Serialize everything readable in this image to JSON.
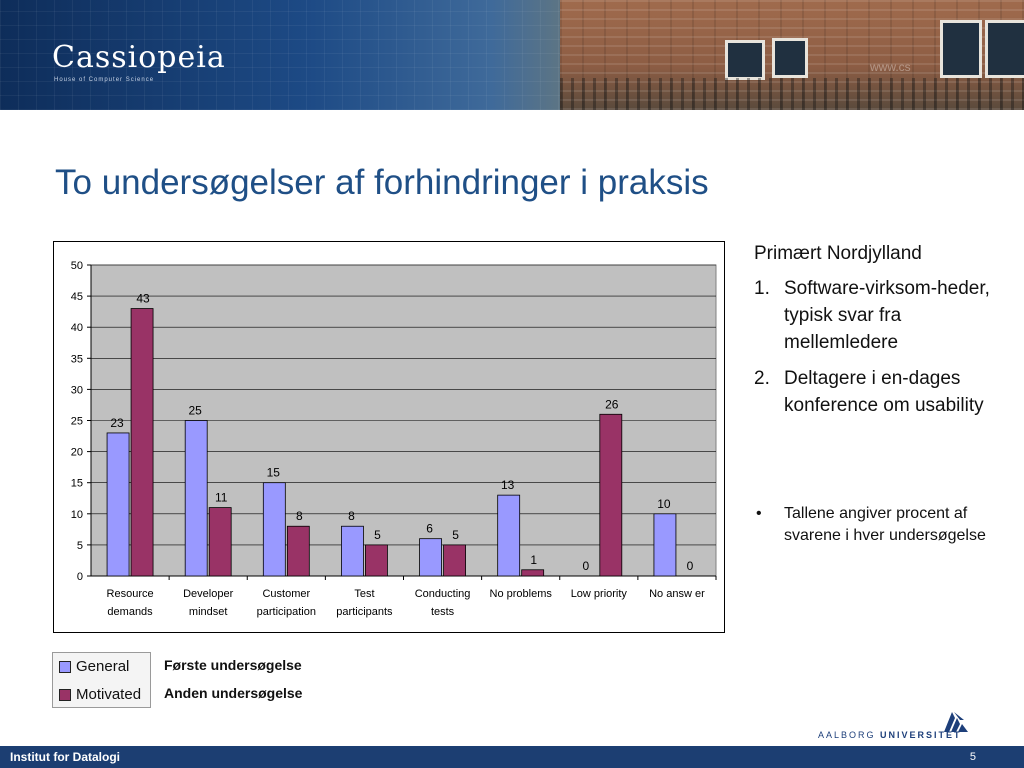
{
  "banner": {
    "logo": "Cassiopeia",
    "logo_sub": "House of Computer Science",
    "url_watermark": "www.cs"
  },
  "title": "To undersøgelser af forhindringer i praksis",
  "chart_data": {
    "type": "bar",
    "categories": [
      [
        "Resource",
        "demands"
      ],
      [
        "Developer",
        "mindset"
      ],
      [
        "Customer",
        "participation"
      ],
      [
        "Test",
        "participants"
      ],
      [
        "Conducting",
        "tests"
      ],
      [
        "No problems"
      ],
      [
        "Low  priority"
      ],
      [
        "No answ er"
      ]
    ],
    "series": [
      {
        "name": "General",
        "values": [
          23,
          25,
          15,
          8,
          6,
          13,
          0,
          10
        ],
        "color": "#9999ff"
      },
      {
        "name": "Motivated",
        "values": [
          43,
          11,
          8,
          5,
          5,
          1,
          26,
          0
        ],
        "color": "#993366"
      }
    ],
    "ylim": [
      0,
      50
    ],
    "yticks": [
      0,
      5,
      10,
      15,
      20,
      25,
      30,
      35,
      40,
      45,
      50
    ],
    "plot_background": "#c0c0c0",
    "grid": true,
    "legend_position": "bottom-left"
  },
  "legend": {
    "items": [
      {
        "label": "General",
        "description": "Første undersøgelse"
      },
      {
        "label": "Motivated",
        "description": "Anden undersøgelse"
      }
    ]
  },
  "side": {
    "intro": "Primært Nordjylland",
    "items": [
      {
        "num": "1.",
        "text": "Software-virksom-heder, typisk svar fra mellemledere"
      },
      {
        "num": "2.",
        "text": "Deltagere i en-dages konference om usability"
      }
    ],
    "bullet": "Tallene angiver procent af svarene i hver undersøgelse"
  },
  "aau": {
    "name_part1": "AALBORG",
    "name_part2": "UNIVERSITET"
  },
  "footer": {
    "institute": "Institut for Datalogi",
    "page": "5"
  }
}
